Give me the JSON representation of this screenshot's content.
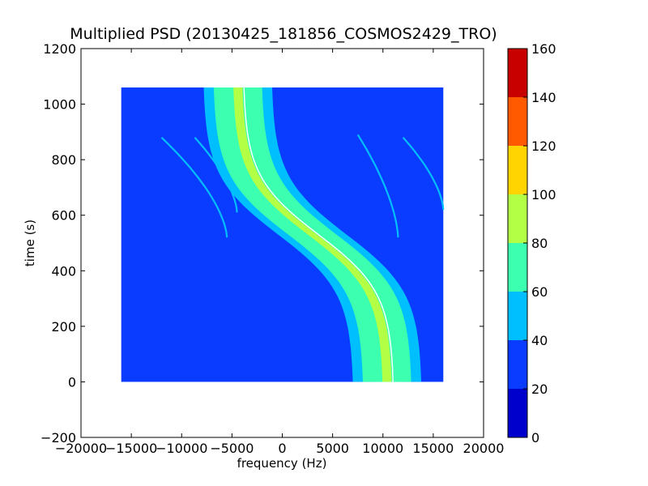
{
  "chart_data": {
    "type": "heatmap",
    "title": "Multiplied PSD (20130425_181856_COSMOS2429_TRO)",
    "xlabel": "frequency (Hz)",
    "ylabel": "time (s)",
    "xlim": [
      -20000,
      20000
    ],
    "ylim": [
      -200,
      1200
    ],
    "xticks": [
      "−20000",
      "−15000",
      "−10000",
      "−5000",
      "0",
      "5000",
      "10000",
      "15000",
      "20000"
    ],
    "xtick_values": [
      -20000,
      -15000,
      -10000,
      -5000,
      0,
      5000,
      10000,
      15000,
      20000
    ],
    "yticks": [
      "−200",
      "0",
      "200",
      "400",
      "600",
      "800",
      "1000",
      "1200"
    ],
    "ytick_values": [
      -200,
      0,
      200,
      400,
      600,
      800,
      1000,
      1200
    ],
    "data_extent": {
      "x": [
        -16000,
        16000
      ],
      "y": [
        0,
        1060
      ]
    },
    "background_level": 25,
    "main_trace": {
      "center_freq_hz": 3000,
      "amplitude_hz": 7500,
      "center_time_s": 530,
      "width_time_s": 210,
      "core_level": 75,
      "peak_level": 85
    },
    "secondary_traces": [
      {
        "t_start": 880,
        "t_end": 520,
        "f_start": -12000,
        "f_end": -5500
      },
      {
        "t_start": 880,
        "t_end": 610,
        "f_start": -8700,
        "f_end": -4500
      },
      {
        "t_start": 890,
        "t_end": 520,
        "f_start": 7500,
        "f_end": 11500
      },
      {
        "t_start": 880,
        "t_end": 620,
        "f_start": 12000,
        "f_end": 16000
      }
    ],
    "colorbar": {
      "min": 0,
      "max": 160,
      "ticks": [
        "0",
        "20",
        "40",
        "60",
        "80",
        "100",
        "120",
        "140",
        "160"
      ],
      "levels": [
        {
          "from": 0,
          "to": 20,
          "color": "#0000cd"
        },
        {
          "from": 20,
          "to": 40,
          "color": "#0a3cff"
        },
        {
          "from": 40,
          "to": 60,
          "color": "#00bfff"
        },
        {
          "from": 60,
          "to": 80,
          "color": "#3dffb0"
        },
        {
          "from": 80,
          "to": 100,
          "color": "#b2ff45"
        },
        {
          "from": 100,
          "to": 120,
          "color": "#ffd400"
        },
        {
          "from": 120,
          "to": 140,
          "color": "#ff5a00"
        },
        {
          "from": 140,
          "to": 160,
          "color": "#c80000"
        }
      ]
    }
  }
}
